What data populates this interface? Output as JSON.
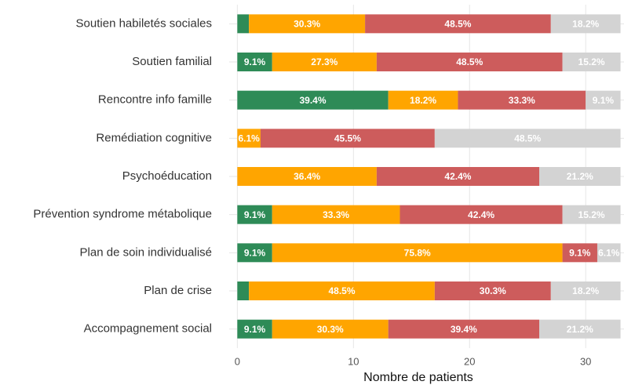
{
  "chart_data": {
    "type": "stacked_barh",
    "xlabel": "Nombre de patients",
    "categories": [
      "Soutien habiletés sociales",
      "Soutien familial",
      "Rencontre info famille",
      "Remédiation cognitive",
      "Psychoéducation",
      "Prévention syndrome métabolique",
      "Plan de soin individualisé",
      "Plan de crise",
      "Accompagnement social"
    ],
    "series": [
      {
        "color": "#2e8b57",
        "values": [
          1,
          3,
          13,
          0,
          0,
          3,
          3,
          1,
          3
        ],
        "value_labels": [
          null,
          "9.1%",
          "39.4%",
          null,
          null,
          "9.1%",
          "9.1%",
          null,
          "9.1%"
        ]
      },
      {
        "color": "#ffa500",
        "values": [
          10,
          9,
          6,
          2,
          12,
          11,
          25,
          16,
          10
        ],
        "value_labels": [
          "30.3%",
          "27.3%",
          "18.2%",
          "6.1%",
          "36.4%",
          "33.3%",
          "75.8%",
          "48.5%",
          "30.3%"
        ]
      },
      {
        "color": "#cd5c5c",
        "values": [
          16,
          16,
          11,
          15,
          14,
          14,
          3,
          10,
          13
        ],
        "value_labels": [
          "48.5%",
          "48.5%",
          "33.3%",
          "45.5%",
          "42.4%",
          "42.4%",
          "9.1%",
          "30.3%",
          "39.4%"
        ]
      },
      {
        "color": "#d3d3d3",
        "values": [
          6,
          5,
          3,
          16,
          7,
          5,
          2,
          6,
          7
        ],
        "value_labels": [
          "18.2%",
          "15.2%",
          "9.1%",
          "48.5%",
          "21.2%",
          "15.2%",
          "6.1%",
          "18.2%",
          "21.2%"
        ]
      }
    ],
    "xlim": [
      -0.7,
      33.3
    ],
    "xticks": [
      0,
      10,
      20,
      30
    ],
    "grid": true
  }
}
